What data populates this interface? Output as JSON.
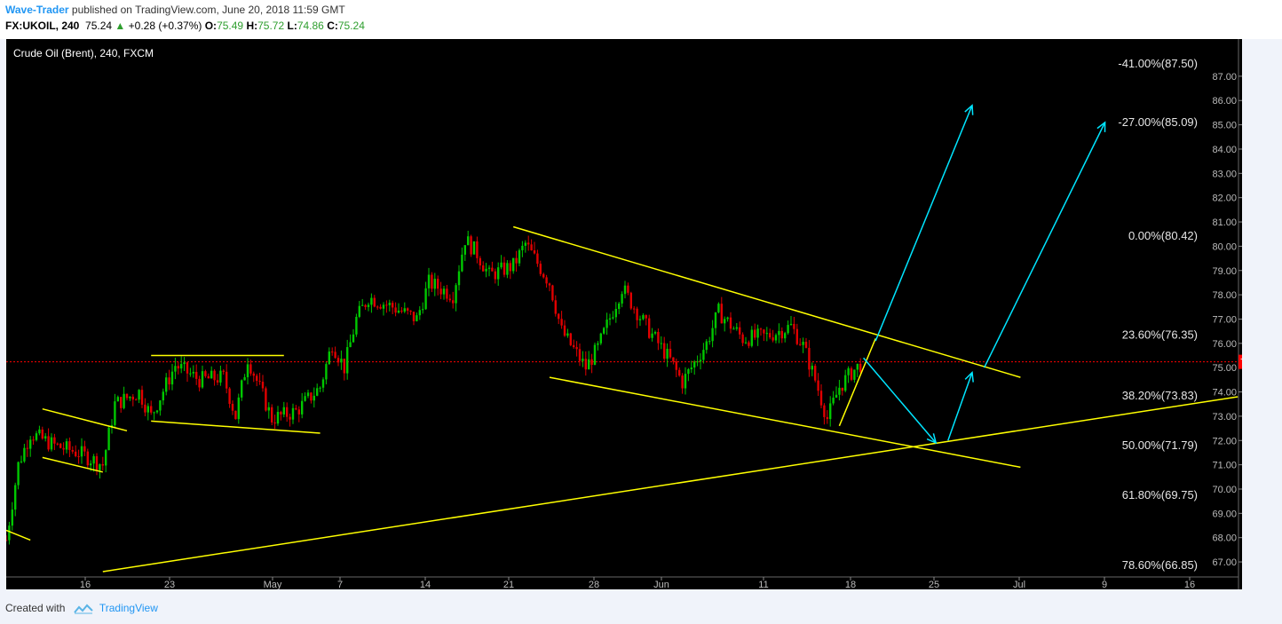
{
  "header": {
    "author": "Wave-Trader",
    "published_text": " published on TradingView.com, June 20, 2018 11:59 GMT",
    "symbol": "FX:UKOIL, 240",
    "last": "75.24",
    "arrow": "▲",
    "change": "+0.28 (+0.37%)",
    "o_label": "O:",
    "o_value": "75.49",
    "h_label": "H:",
    "h_value": "75.72",
    "l_label": "L:",
    "l_value": "74.86",
    "c_label": "C:",
    "c_value": "75.24"
  },
  "footer": {
    "created_with": "Created with",
    "brand": "TradingView"
  },
  "colors": {
    "background": "#000000",
    "up_candle": "#00c800",
    "down_candle": "#e00000",
    "trendline": "#ffff00",
    "arrow": "#00e5ff",
    "last_price_badge": "#ff0000",
    "axis_text": "#bbbbbb"
  },
  "chart_data": {
    "type": "candlestick",
    "title": "Crude Oil (Brent), 240, FXCM",
    "ylim": [
      66.6,
      87.8
    ],
    "y_ticks": [
      67.0,
      68.0,
      69.0,
      70.0,
      71.0,
      72.0,
      73.0,
      74.0,
      75.0,
      76.0,
      77.0,
      78.0,
      79.0,
      80.0,
      81.0,
      82.0,
      83.0,
      84.0,
      85.0,
      86.0,
      87.0
    ],
    "x_ticks": [
      "16",
      "23",
      "May",
      "7",
      "14",
      "21",
      "28",
      "Jun",
      "11",
      "18",
      "25",
      "Jul",
      "9",
      "16"
    ],
    "last_price": 75.24,
    "fib_levels": [
      {
        "label": "-41.00%(87.50)",
        "value": 87.5
      },
      {
        "label": "-27.00%(85.09)",
        "value": 85.09
      },
      {
        "label": "0.00%(80.42)",
        "value": 80.42
      },
      {
        "label": "23.60%(76.35)",
        "value": 76.35
      },
      {
        "label": "38.20%(73.83)",
        "value": 73.83
      },
      {
        "label": "50.00%(71.79)",
        "value": 71.79
      },
      {
        "label": "61.80%(69.75)",
        "value": 69.75
      },
      {
        "label": "78.60%(66.85)",
        "value": 66.85
      }
    ],
    "price_path": [
      {
        "date": "Apr 10",
        "close": 67.9
      },
      {
        "date": "Apr 11",
        "close": 71.0
      },
      {
        "date": "Apr 12",
        "close": 72.3
      },
      {
        "date": "Apr 14",
        "close": 71.8
      },
      {
        "date": "Apr 16",
        "close": 71.5
      },
      {
        "date": "Apr 18",
        "close": 71.0
      },
      {
        "date": "Apr 19",
        "close": 73.5
      },
      {
        "date": "Apr 21",
        "close": 74.0
      },
      {
        "date": "Apr 22",
        "close": 73.0
      },
      {
        "date": "Apr 24",
        "close": 75.1
      },
      {
        "date": "Apr 26",
        "close": 74.5
      },
      {
        "date": "Apr 28",
        "close": 74.6
      },
      {
        "date": "Apr 29",
        "close": 73.0
      },
      {
        "date": "Apr 30",
        "close": 75.4
      },
      {
        "date": "May 2",
        "close": 72.9
      },
      {
        "date": "May 4",
        "close": 73.2
      },
      {
        "date": "May 6",
        "close": 74.2
      },
      {
        "date": "May 7",
        "close": 76.0
      },
      {
        "date": "May 8",
        "close": 75.0
      },
      {
        "date": "May 9",
        "close": 77.0
      },
      {
        "date": "May 10",
        "close": 77.9
      },
      {
        "date": "May 12",
        "close": 77.5
      },
      {
        "date": "May 14",
        "close": 77.0
      },
      {
        "date": "May 15",
        "close": 78.5
      },
      {
        "date": "May 17",
        "close": 78.0
      },
      {
        "date": "May 18",
        "close": 80.3
      },
      {
        "date": "May 19",
        "close": 79.7
      },
      {
        "date": "May 20",
        "close": 78.8
      },
      {
        "date": "May 22",
        "close": 79.2
      },
      {
        "date": "May 23",
        "close": 80.1
      },
      {
        "date": "May 25",
        "close": 78.5
      },
      {
        "date": "May 26",
        "close": 76.5
      },
      {
        "date": "May 28",
        "close": 75.0
      },
      {
        "date": "May 29",
        "close": 75.8
      },
      {
        "date": "May 31",
        "close": 78.3
      },
      {
        "date": "Jun 2",
        "close": 76.7
      },
      {
        "date": "Jun 4",
        "close": 75.3
      },
      {
        "date": "Jun 5",
        "close": 74.4
      },
      {
        "date": "Jun 7",
        "close": 76.0
      },
      {
        "date": "Jun 8",
        "close": 77.3
      },
      {
        "date": "Jun 10",
        "close": 76.2
      },
      {
        "date": "Jun 12",
        "close": 76.3
      },
      {
        "date": "Jun 14",
        "close": 76.7
      },
      {
        "date": "Jun 15",
        "close": 75.9
      },
      {
        "date": "Jun 16",
        "close": 74.5
      },
      {
        "date": "Jun 17",
        "close": 72.9
      },
      {
        "date": "Jun 18",
        "close": 74.2
      },
      {
        "date": "Jun 19",
        "close": 74.8
      },
      {
        "date": "Jun 20",
        "close": 75.24
      }
    ],
    "trendlines": [
      {
        "from": [
          "Apr 10",
          68.3
        ],
        "to": [
          "Apr 12",
          67.9
        ]
      },
      {
        "from": [
          "Apr 13",
          73.3
        ],
        "to": [
          "Apr 20",
          72.4
        ]
      },
      {
        "from": [
          "Apr 13",
          71.3
        ],
        "to": [
          "Apr 18",
          70.7
        ]
      },
      {
        "from": [
          "Apr 22",
          75.5
        ],
        "to": [
          "May 3",
          75.5
        ]
      },
      {
        "from": [
          "Apr 22",
          72.8
        ],
        "to": [
          "May 6",
          72.3
        ]
      },
      {
        "from": [
          "May 22",
          80.8
        ],
        "to": [
          "Jul 3",
          74.6
        ]
      },
      {
        "from": [
          "May 25",
          74.6
        ],
        "to": [
          "Jul 3",
          70.9
        ]
      },
      {
        "from": [
          "Apr 18",
          66.6
        ],
        "to": [
          "Jul 21",
          73.8
        ]
      },
      {
        "from": [
          "Jun 18",
          72.6
        ],
        "to": [
          "Jun 21",
          76.2
        ]
      }
    ],
    "arrows": [
      {
        "from": [
          "Jun 21",
          76.1
        ],
        "to": [
          "Jun 29",
          85.8
        ]
      },
      {
        "from": [
          "Jun 20",
          75.4
        ],
        "to": [
          "Jun 26",
          71.9
        ]
      },
      {
        "from": [
          "Jun 27",
          72.0
        ],
        "to": [
          "Jun 29",
          74.8
        ]
      },
      {
        "from": [
          "Jun 30",
          75.0
        ],
        "to": [
          "Jul 10",
          85.1
        ]
      }
    ]
  }
}
